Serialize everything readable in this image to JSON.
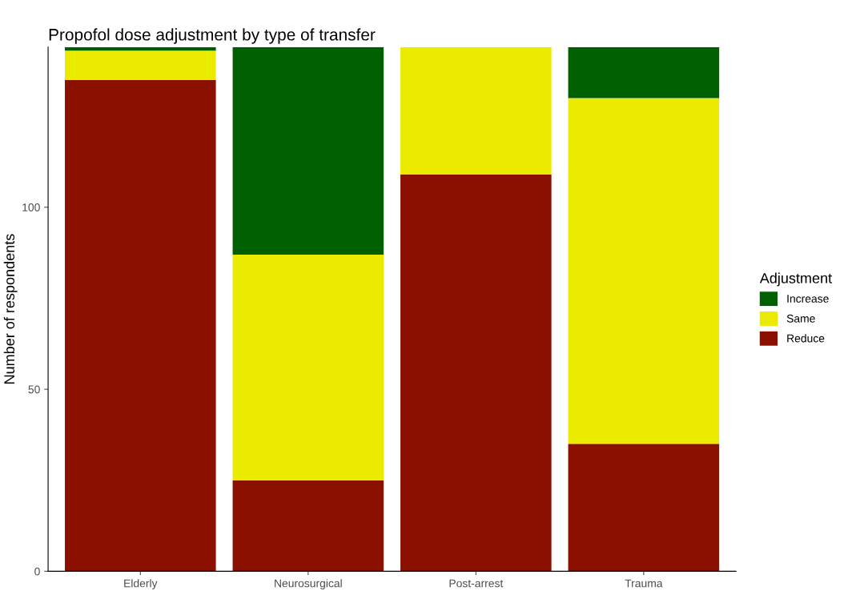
{
  "chart_data": {
    "type": "bar",
    "title": "Propofol dose adjustment by type of transfer",
    "ylabel": "Number of respondents",
    "legend_title": "Adjustment",
    "categories": [
      "Elderly",
      "Neurosurgical",
      "Post-arrest",
      "Trauma"
    ],
    "stacked": true,
    "series": [
      {
        "name": "Reduce",
        "color": "#8b1000",
        "values": [
          135,
          25,
          109,
          35
        ]
      },
      {
        "name": "Same",
        "color": "#ebeb00",
        "values": [
          8,
          62,
          35,
          95
        ]
      },
      {
        "name": "Increase",
        "color": "#005f00",
        "values": [
          1,
          57,
          0,
          14
        ]
      }
    ],
    "ylim": [
      0,
      144
    ],
    "yticks": [
      0,
      50,
      100
    ],
    "grid": false,
    "legend": "right"
  }
}
